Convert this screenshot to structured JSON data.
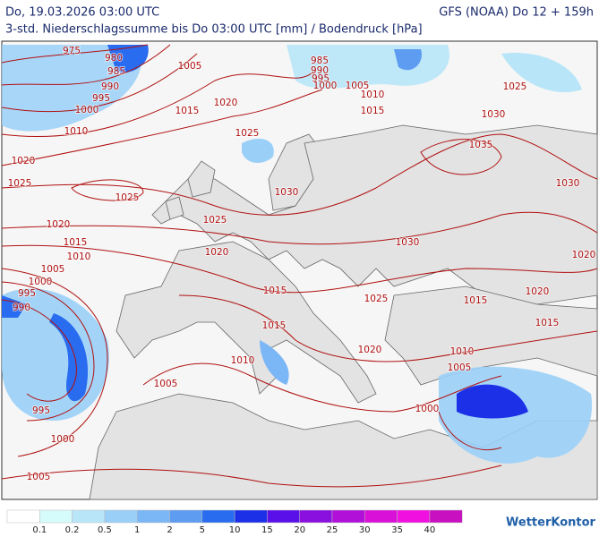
{
  "header": {
    "datetime": "Do, 19.03.2026 03:00 UTC",
    "model": "GFS (NOAA) Do 12 + 159h",
    "subtitle": "3-std. Niederschlagssumme bis Do 03:00 UTC [mm] / Bodendruck [hPa]"
  },
  "isobar_labels": [
    975,
    980,
    985,
    990,
    995,
    1000,
    1010,
    1005,
    1015,
    1020,
    1025,
    1020,
    1025,
    1025,
    985,
    990,
    995,
    1000,
    1005,
    1010,
    1015,
    1025,
    1030,
    1035,
    1030,
    1030,
    1025,
    1020,
    1015,
    1010,
    1020,
    1030,
    1020,
    1005,
    1000,
    995,
    990,
    1015,
    1025,
    1015,
    1020,
    1015,
    1015,
    1020,
    1010,
    1010,
    1005,
    1005,
    995,
    1000,
    1000,
    1005
  ],
  "legend": {
    "labels": [
      0.1,
      0.2,
      0.5,
      1,
      2,
      5,
      10,
      15,
      20,
      25,
      30,
      35,
      40
    ],
    "colors": [
      "#ffffff",
      "#d6fbfb",
      "#b8e6f8",
      "#9ad0f8",
      "#7bb6f6",
      "#5e9cf2",
      "#2a6cf0",
      "#1c30e8",
      "#5a10e8",
      "#8a10e0",
      "#b010d8",
      "#d810d8",
      "#f010e0",
      "#c810c0"
    ]
  },
  "logo": "WetterKontor"
}
